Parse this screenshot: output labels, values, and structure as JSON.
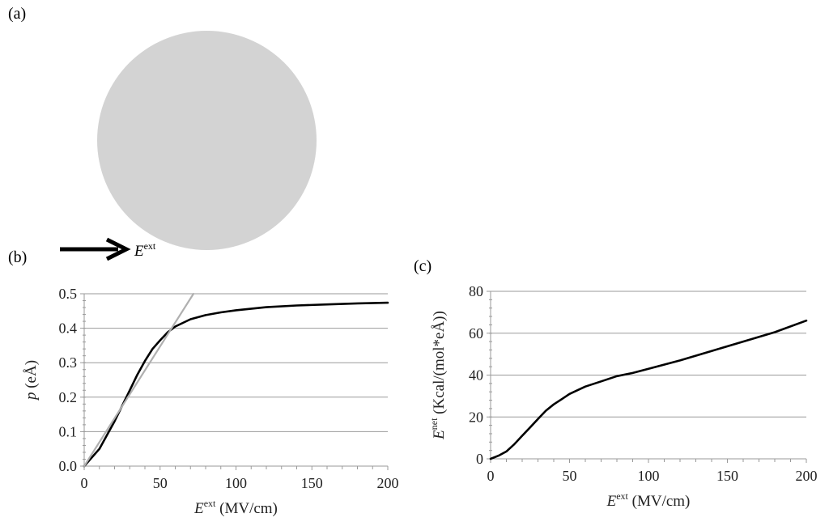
{
  "panels": {
    "a": "(a)",
    "b": "(b)",
    "c": "(c)"
  },
  "schematic": {
    "field_symbol": "E",
    "field_superscript": "ext",
    "sphere_color": "#d3d3d3",
    "arrow_color": "#000000"
  },
  "chart_data": [
    {
      "type": "line",
      "panel": "(b)",
      "xlabel": "Eext (MV/cm)",
      "ylabel": "p (eÅ)",
      "xlim": [
        0,
        200
      ],
      "ylim": [
        0,
        0.5
      ],
      "x_ticks": [
        "0",
        "50",
        "100",
        "150",
        "200"
      ],
      "y_ticks": [
        "0.0",
        "0.1",
        "0.2",
        "0.3",
        "0.4",
        "0.5"
      ],
      "grid": "horizontal",
      "series": [
        {
          "color": "#000000",
          "x": [
            0,
            5,
            10,
            15,
            20,
            25,
            30,
            35,
            40,
            45,
            50,
            55,
            60,
            70,
            80,
            90,
            100,
            120,
            140,
            160,
            180,
            200
          ],
          "y": [
            0.0,
            0.025,
            0.05,
            0.09,
            0.13,
            0.175,
            0.22,
            0.265,
            0.305,
            0.34,
            0.365,
            0.388,
            0.405,
            0.426,
            0.438,
            0.446,
            0.452,
            0.461,
            0.466,
            0.469,
            0.472,
            0.474
          ]
        },
        {
          "color": "#b0b0b0",
          "x": [
            0,
            72
          ],
          "y": [
            0.0,
            0.5
          ]
        }
      ]
    },
    {
      "type": "line",
      "panel": "(c)",
      "xlabel": "Eext (MV/cm)",
      "ylabel": "Enet (Kcal/(mol*eÅ))",
      "xlim": [
        0,
        200
      ],
      "ylim": [
        0,
        80
      ],
      "x_ticks": [
        "0",
        "50",
        "100",
        "150",
        "200"
      ],
      "y_ticks": [
        "0",
        "20",
        "40",
        "60",
        "80"
      ],
      "grid": "horizontal",
      "series": [
        {
          "color": "#000000",
          "x": [
            0,
            5,
            10,
            15,
            20,
            25,
            30,
            35,
            40,
            45,
            50,
            60,
            70,
            80,
            90,
            100,
            120,
            140,
            160,
            180,
            200
          ],
          "y": [
            0,
            1.5,
            3.5,
            7,
            11,
            15,
            19,
            23,
            26,
            28.5,
            31,
            34.5,
            37,
            39.5,
            41,
            43,
            47,
            51.5,
            56,
            60.5,
            66
          ]
        }
      ]
    }
  ]
}
